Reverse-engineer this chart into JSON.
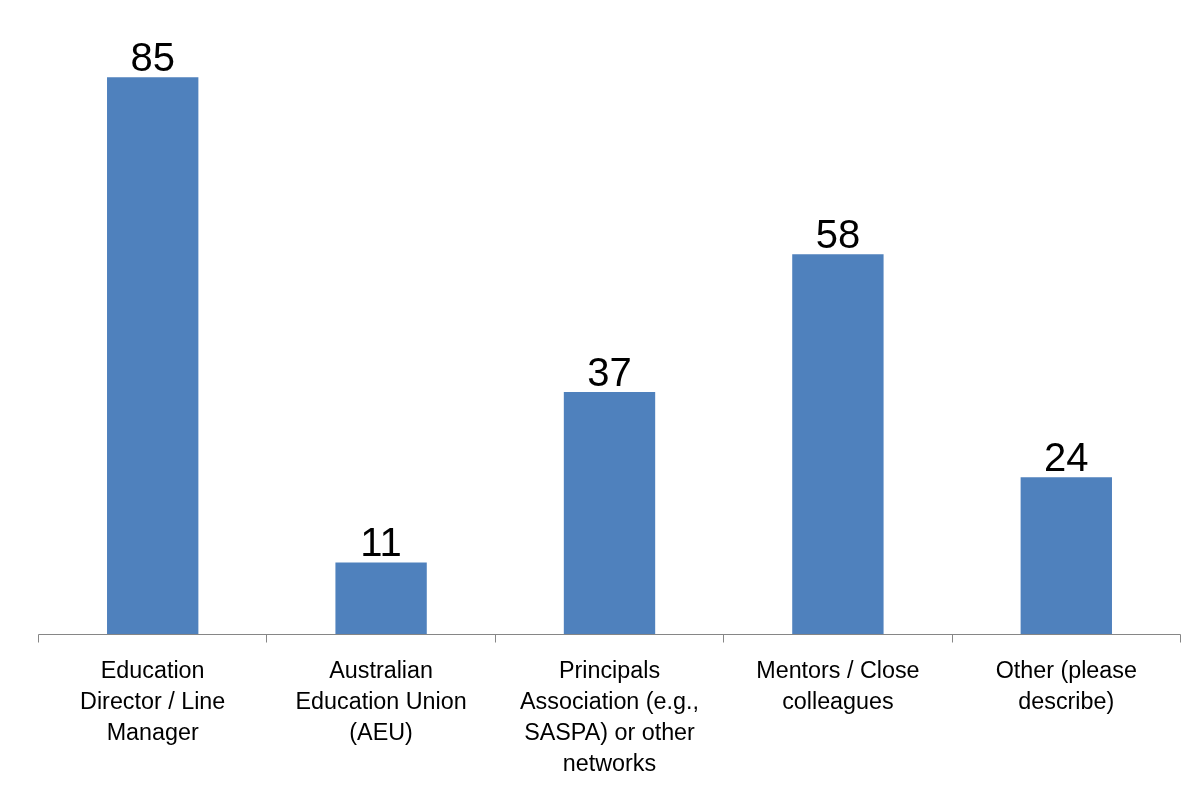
{
  "chart_data": {
    "type": "bar",
    "categories": [
      "Education\nDirector / Line\nManager",
      "Australian\nEducation Union\n(AEU)",
      "Principals\nAssociation (e.g.,\nSASPA) or other\nnetworks",
      "Mentors / Close\ncolleagues",
      "Other (please\ndescribe)"
    ],
    "values": [
      85,
      11,
      37,
      58,
      24
    ],
    "color": "#4f81bd",
    "tick_labels": "x",
    "data_labels": true
  }
}
